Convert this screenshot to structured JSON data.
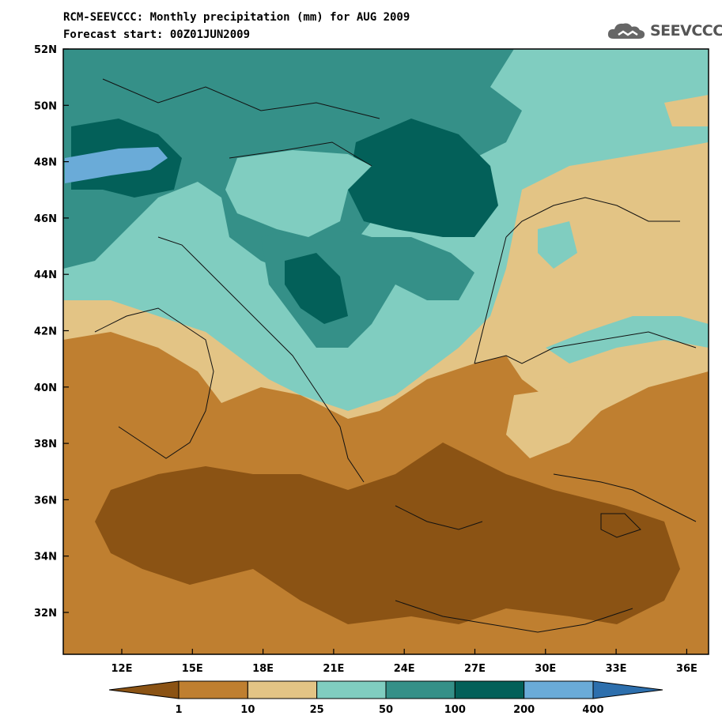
{
  "header": {
    "title_line1": "RCM-SEEVCCC: Monthly precipitation (mm) for AUG 2009",
    "title_line2": "Forecast start: 00Z01JUN2009",
    "logo_text": "SEEVCCC",
    "logo_icon": "cloud-icon"
  },
  "map": {
    "lat_labels": [
      "52N",
      "50N",
      "48N",
      "46N",
      "44N",
      "42N",
      "40N",
      "38N",
      "36N",
      "34N",
      "32N"
    ],
    "lon_labels": [
      "12E",
      "15E",
      "18E",
      "21E",
      "24E",
      "27E",
      "30E",
      "33E",
      "36E"
    ]
  },
  "colorbar": {
    "thresholds": [
      "1",
      "10",
      "25",
      "50",
      "100",
      "200",
      "400"
    ],
    "colors": [
      "#8b5314",
      "#bf7f30",
      "#e3c485",
      "#80cdc0",
      "#359088",
      "#036059",
      "#6aabd8",
      "#2d6fad"
    ]
  }
}
